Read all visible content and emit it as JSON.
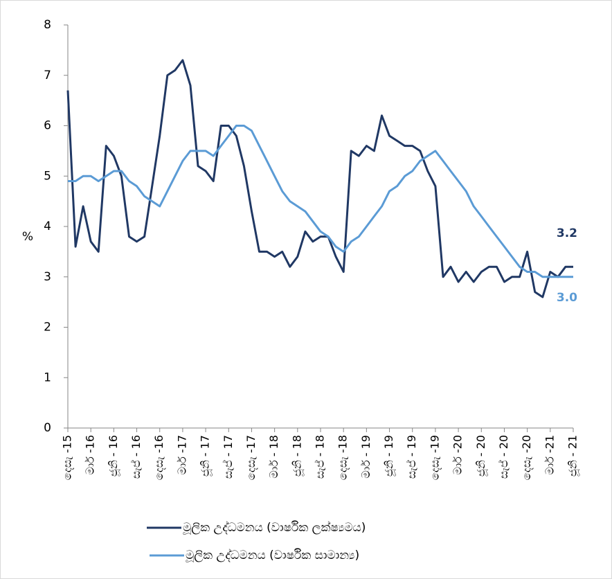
{
  "chart_data": {
    "type": "line",
    "y_label": "%",
    "categories": [
      "දෙසැ -15",
      null,
      null,
      "මාර් -16",
      null,
      null,
      "ජූනි - 16",
      null,
      null,
      "සැප් - 16",
      null,
      null,
      "දෙසැ -16",
      null,
      null,
      "මාර් -17",
      null,
      null,
      "ජූනි - 17",
      null,
      null,
      "සැප් - 17",
      null,
      null,
      "දෙසැ -17",
      null,
      null,
      "මාර් - 18",
      null,
      null,
      "ජූනි - 18",
      null,
      null,
      "සැප් - 18",
      null,
      null,
      "දෙසැ -18",
      null,
      null,
      "මාර් - 19",
      null,
      null,
      "ජූනි - 19",
      null,
      null,
      "සැප් - 19",
      null,
      null,
      "දෙසැ -19",
      null,
      null,
      "මාර් -20",
      null,
      null,
      "ජූනි - 20",
      null,
      null,
      "සැප් - 20",
      null,
      null,
      "දෙසැ -20",
      null,
      null,
      "මාර් -21",
      null,
      null,
      "ජූනි - 21"
    ],
    "series": [
      {
        "name": "මූලික උද්ධමනය (වාර්ෂික ලක්ෂ්‍යමය)",
        "color": "#203864",
        "values": [
          6.7,
          3.6,
          4.4,
          3.7,
          3.5,
          5.6,
          5.4,
          5.0,
          3.8,
          3.7,
          3.8,
          4.8,
          5.8,
          7.0,
          7.1,
          7.3,
          6.8,
          5.2,
          5.1,
          4.9,
          6.0,
          6.0,
          5.8,
          5.2,
          4.3,
          3.5,
          3.5,
          3.4,
          3.5,
          3.2,
          3.4,
          3.9,
          3.7,
          3.8,
          3.8,
          3.4,
          3.1,
          5.5,
          5.4,
          5.6,
          5.5,
          6.2,
          5.8,
          5.7,
          5.6,
          5.6,
          5.5,
          5.1,
          4.8,
          3.0,
          3.2,
          2.9,
          3.1,
          2.9,
          3.1,
          3.2,
          3.2,
          2.9,
          3.0,
          3.0,
          3.5,
          2.7,
          2.6,
          3.1,
          3.0,
          3.2,
          3.2
        ],
        "value_labels": [
          null,
          null,
          null,
          null,
          null,
          null,
          null,
          null,
          null,
          null,
          null,
          null,
          null,
          null,
          null,
          null,
          null,
          null,
          null,
          null,
          null,
          null,
          null,
          null,
          null,
          null,
          null,
          null,
          null,
          null,
          null,
          null,
          null,
          null,
          null,
          null,
          null,
          null,
          null,
          null,
          null,
          null,
          null,
          null,
          null,
          null,
          null,
          null,
          null,
          null,
          null,
          null,
          null,
          null,
          null,
          null,
          null,
          null,
          null,
          null,
          null,
          null,
          null,
          null,
          null,
          null,
          "3.2"
        ]
      },
      {
        "name": "මූලික උද්ධමනය (වාර්ෂික සාමාන්‍ය)",
        "color": "#5b9bd5",
        "values": [
          4.9,
          4.9,
          5.0,
          5.0,
          4.9,
          5.0,
          5.1,
          5.1,
          4.9,
          4.8,
          4.6,
          4.5,
          4.4,
          4.7,
          5.0,
          5.3,
          5.5,
          5.5,
          5.5,
          5.4,
          5.6,
          5.8,
          6.0,
          6.0,
          5.9,
          5.6,
          5.3,
          5.0,
          4.7,
          4.5,
          4.4,
          4.3,
          4.1,
          3.9,
          3.8,
          3.6,
          3.5,
          3.7,
          3.8,
          4.0,
          4.2,
          4.4,
          4.7,
          4.8,
          5.0,
          5.1,
          5.3,
          5.4,
          5.5,
          5.3,
          5.1,
          4.9,
          4.7,
          4.4,
          4.2,
          4.0,
          3.8,
          3.6,
          3.4,
          3.2,
          3.1,
          3.1,
          3.0,
          3.0,
          3.0,
          3.0,
          3.0
        ],
        "value_labels": [
          null,
          null,
          null,
          null,
          null,
          null,
          null,
          null,
          null,
          null,
          null,
          null,
          null,
          null,
          null,
          null,
          null,
          null,
          null,
          null,
          null,
          null,
          null,
          null,
          null,
          null,
          null,
          null,
          null,
          null,
          null,
          null,
          null,
          null,
          null,
          null,
          null,
          null,
          null,
          null,
          null,
          null,
          null,
          null,
          null,
          null,
          null,
          null,
          null,
          null,
          null,
          null,
          null,
          null,
          null,
          null,
          null,
          null,
          null,
          null,
          null,
          null,
          null,
          null,
          null,
          null,
          "3.0"
        ]
      }
    ],
    "ylim": [
      0,
      8
    ],
    "yticks": [
      0,
      1,
      2,
      3,
      4,
      5,
      6,
      7,
      8
    ]
  }
}
